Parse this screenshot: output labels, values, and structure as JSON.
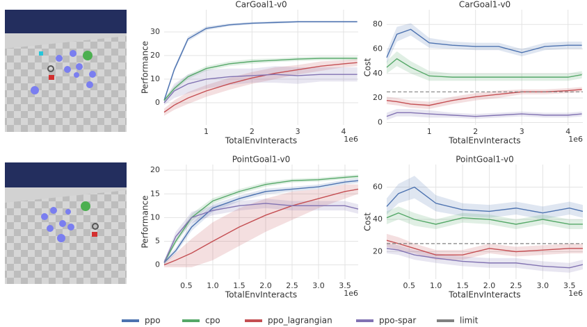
{
  "chart_data": [
    {
      "type": "line",
      "title": "CarGoal1-v0",
      "x_label": "TotalEnvInteracts",
      "x_offset_label": "1e6",
      "y_label": "Performance",
      "grid": true,
      "x": [
        0.08,
        0.3,
        0.6,
        1,
        1.5,
        2,
        2.5,
        3,
        3.5,
        4,
        4.3
      ],
      "xlim": [
        0.08,
        4.32
      ],
      "xticks": [
        1,
        2,
        3,
        4
      ],
      "ylim": [
        -9.4,
        39.4
      ],
      "yticks": [
        0,
        10,
        20,
        30
      ],
      "series": [
        {
          "name": "ppo",
          "color": "#4c72b0",
          "values": [
            1,
            14,
            27,
            31.5,
            33,
            33.7,
            34,
            34.3,
            34.3,
            34.3,
            34.3
          ],
          "errors": [
            1,
            1,
            1,
            0.8,
            0.6,
            0.5,
            0.5,
            0.4,
            0.4,
            0.4,
            0.4
          ]
        },
        {
          "name": "cpo",
          "color": "#55a868",
          "values": [
            1,
            6,
            11,
            14.5,
            16.5,
            17.5,
            18,
            18.5,
            18.8,
            18.8,
            18.8
          ],
          "errors": [
            1,
            1,
            1,
            1,
            1,
            1,
            0.8,
            0.8,
            0.8,
            0.8,
            0.8
          ]
        },
        {
          "name": "ppo_lagrangian",
          "color": "#c44e52",
          "values": [
            -4,
            -1,
            2,
            5,
            8,
            10.5,
            12.5,
            14,
            15.5,
            16.5,
            17
          ],
          "errors": [
            1.5,
            2,
            2.5,
            2.5,
            2.5,
            2.5,
            2.5,
            2,
            2,
            1.5,
            1.5
          ]
        },
        {
          "name": "ppo-spar",
          "color": "#8172b2",
          "values": [
            0,
            5,
            8,
            10,
            11,
            11.5,
            12,
            11.5,
            12,
            12,
            12
          ],
          "errors": [
            1,
            3,
            4,
            4,
            3.5,
            3,
            3.5,
            3.5,
            3,
            3,
            3
          ]
        }
      ]
    },
    {
      "type": "line",
      "title": "CarGoal1-v0",
      "x_label": "TotalEnvInteracts",
      "x_offset_label": "1e6",
      "y_label": "Cost",
      "grid": true,
      "x": [
        0.08,
        0.3,
        0.6,
        1,
        1.5,
        2,
        2.5,
        3,
        3.5,
        4,
        4.3
      ],
      "xlim": [
        0.08,
        4.32
      ],
      "xticks": [
        1,
        2,
        3,
        4
      ],
      "ylim": [
        -2,
        92
      ],
      "yticks": [
        0,
        20,
        40,
        60,
        80
      ],
      "limit": {
        "value": 25,
        "name": "limit",
        "color": "#808080"
      },
      "series": [
        {
          "color": "#4c72b0",
          "values": [
            53,
            72,
            76,
            65,
            63,
            62,
            62,
            57,
            62,
            63,
            63
          ],
          "errors": [
            5,
            6,
            5,
            4,
            3,
            3,
            3,
            3,
            3,
            3,
            3
          ]
        },
        {
          "color": "#55a868",
          "values": [
            45,
            52,
            45,
            38,
            37,
            37,
            37,
            37,
            37,
            37,
            39
          ],
          "errors": [
            5,
            6,
            5,
            4,
            3,
            3,
            3,
            3,
            3,
            3,
            3
          ]
        },
        {
          "color": "#c44e52",
          "values": [
            18,
            17,
            15,
            14,
            18,
            21,
            23,
            25,
            25,
            26,
            27
          ],
          "errors": [
            3,
            3,
            3,
            3,
            3,
            3,
            3,
            2,
            2,
            2,
            2
          ]
        },
        {
          "color": "#8172b2",
          "values": [
            5,
            8,
            8,
            7,
            6,
            5,
            6,
            7,
            6,
            6,
            7
          ],
          "errors": [
            3,
            3,
            3,
            3,
            2,
            2,
            2,
            2,
            2,
            2,
            2
          ]
        }
      ]
    },
    {
      "type": "line",
      "title": "PointGoal1-v0",
      "x_label": "TotalEnvInteracts",
      "x_offset_label": "1e6",
      "y_label": "Performance",
      "grid": true,
      "x": [
        0.08,
        0.3,
        0.6,
        1,
        1.5,
        2,
        2.5,
        3,
        3.5,
        3.75
      ],
      "xlim": [
        0.08,
        3.75
      ],
      "xticks": [
        0.5,
        {
          "value": 1,
          "label": "1.0"
        },
        1.5,
        {
          "value": 2,
          "label": "2.0"
        },
        2.5,
        {
          "value": 3,
          "label": "3.0"
        },
        3.5
      ],
      "ylim": [
        -3,
        21.2
      ],
      "yticks": [
        0,
        5,
        10,
        15,
        20
      ],
      "series": [
        {
          "color": "#4c72b0",
          "values": [
            0.5,
            3,
            8,
            12,
            14,
            15.5,
            16,
            16.5,
            17.5,
            17.8
          ],
          "errors": [
            0.5,
            0.6,
            0.8,
            0.8,
            0.6,
            0.6,
            0.5,
            0.5,
            0.5,
            0.5
          ]
        },
        {
          "color": "#55a868",
          "values": [
            0.5,
            5,
            10,
            13.5,
            15.5,
            17,
            17.8,
            18,
            18.5,
            18.7
          ],
          "errors": [
            0.5,
            0.6,
            0.8,
            0.6,
            0.5,
            0.5,
            0.4,
            0.4,
            0.4,
            0.4
          ]
        },
        {
          "color": "#c44e52",
          "values": [
            0,
            1,
            2.5,
            5,
            8,
            10.5,
            12.5,
            14,
            15.5,
            16
          ],
          "errors": [
            0.5,
            1.5,
            3,
            4,
            4,
            3.5,
            3,
            2,
            1.5,
            1
          ]
        },
        {
          "color": "#8172b2",
          "values": [
            0.5,
            6,
            10,
            11.5,
            12.5,
            13,
            12.5,
            12.5,
            12.5,
            11.8
          ],
          "errors": [
            0.5,
            1,
            1.2,
            1,
            1,
            1,
            1,
            1,
            1,
            1
          ]
        }
      ]
    },
    {
      "type": "line",
      "title": "PointGoal1-v0",
      "x_label": "TotalEnvInteracts",
      "x_offset_label": "1e6",
      "y_label": "Cost",
      "grid": true,
      "x": [
        0.08,
        0.3,
        0.6,
        1,
        1.5,
        2,
        2.5,
        3,
        3.5,
        3.75
      ],
      "xlim": [
        0.08,
        3.75
      ],
      "xticks": [
        0.5,
        {
          "value": 1,
          "label": "1.0"
        },
        1.5,
        {
          "value": 2,
          "label": "2.0"
        },
        2.5,
        {
          "value": 3,
          "label": "3.0"
        },
        3.5
      ],
      "ylim": [
        3,
        74
      ],
      "yticks": [
        20,
        40,
        60
      ],
      "limit": {
        "value": 25,
        "color": "#808080"
      },
      "series": [
        {
          "color": "#4c72b0",
          "values": [
            48,
            56,
            60,
            50,
            46,
            45,
            47,
            44,
            47,
            45
          ],
          "errors": [
            5,
            6,
            7,
            5,
            4,
            4,
            4,
            4,
            4,
            4
          ]
        },
        {
          "color": "#55a868",
          "values": [
            41,
            44,
            40,
            37,
            41,
            40,
            37,
            40,
            37,
            37
          ],
          "errors": [
            4,
            4,
            4,
            3,
            3,
            3,
            3,
            3,
            3,
            3
          ]
        },
        {
          "color": "#c44e52",
          "values": [
            27,
            25,
            22,
            18,
            18,
            22,
            20,
            21,
            22,
            22
          ],
          "errors": [
            4,
            4,
            3,
            3,
            3,
            3,
            3,
            3,
            3,
            3
          ]
        },
        {
          "color": "#8172b2",
          "values": [
            22,
            21,
            18,
            16,
            14,
            13,
            13,
            11,
            10,
            12
          ],
          "errors": [
            3,
            3,
            3,
            3,
            3,
            3,
            3,
            3,
            3,
            3
          ]
        }
      ]
    }
  ]
}
